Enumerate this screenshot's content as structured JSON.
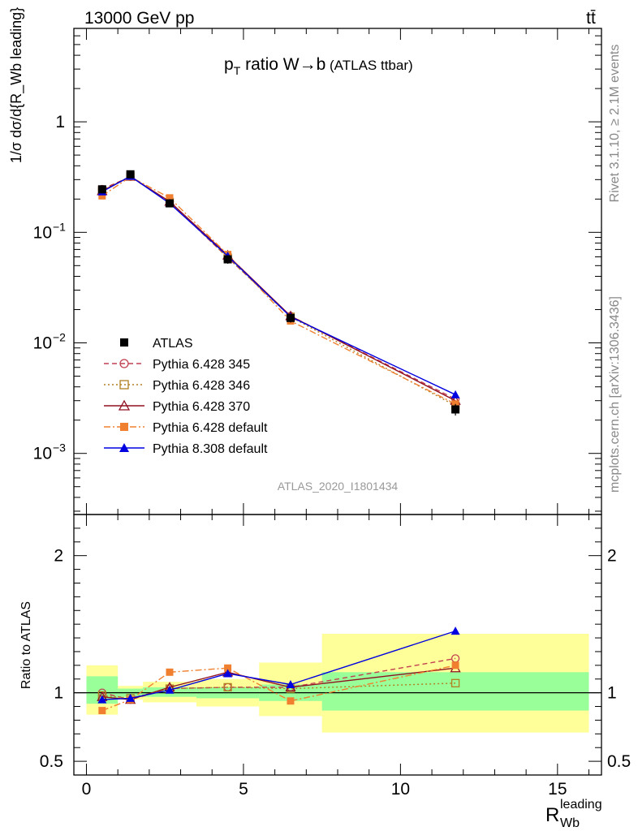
{
  "header": {
    "left": "13000 GeV pp",
    "right": "tt̄"
  },
  "side": {
    "rivet": "Rivet 3.1.10, ≥ 2.1M events",
    "mcplots": "mcplots.cern.ch [arXiv:1306.3436]"
  },
  "analysis_id": "ATLAS_2020_I1801434",
  "plot_title": {
    "main": "p",
    "sub": "T",
    "rest": " ratio W→b",
    "small": " (ATLAS ttbar)"
  },
  "axis_text": {
    "ylabel_top": "1/σ dσ/d{R_Wb leading}",
    "ylabel_bottom": "Ratio to ATLAS",
    "xlabel_main": "R",
    "xlabel_sub": "Wb",
    "xlabel_sup": "leading"
  },
  "chart_data": [
    {
      "type": "line",
      "panel": "main",
      "yscale": "log",
      "xlim": [
        -0.4,
        16.4
      ],
      "ylim": [
        0.00028,
        7
      ],
      "x_ticks": [
        0,
        5,
        10,
        15
      ],
      "y_ticks": [
        {
          "value": 0.001,
          "label": "10",
          "exp": "−3"
        },
        {
          "value": 0.01,
          "label": "10",
          "exp": "−2"
        },
        {
          "value": 0.1,
          "label": "10",
          "exp": "−1"
        },
        {
          "value": 1,
          "label": "1",
          "exp": ""
        }
      ],
      "legend_position": "bottom-left",
      "series": [
        {
          "name": "ATLAS",
          "color": "#000000",
          "marker": "square-filled",
          "line": "none",
          "x": [
            0.5,
            1.4,
            2.65,
            4.5,
            6.5,
            11.75
          ],
          "y": [
            0.245,
            0.335,
            0.183,
            0.057,
            0.0168,
            0.0025
          ],
          "err": [
            0.02,
            0.022,
            0.012,
            0.005,
            0.0015,
            0.0003
          ]
        },
        {
          "name": "Pythia 6.428 345",
          "color": "#c04050",
          "marker": "circle-open",
          "line": "dashed",
          "x": [
            0.5,
            1.4,
            2.65,
            4.5,
            6.5,
            11.75
          ],
          "y": [
            0.246,
            0.318,
            0.188,
            0.059,
            0.0175,
            0.0031
          ]
        },
        {
          "name": "Pythia 6.428 346",
          "color": "#b08020",
          "marker": "square-open",
          "line": "dotted",
          "x": [
            0.5,
            1.4,
            2.65,
            4.5,
            6.5,
            11.75
          ],
          "y": [
            0.24,
            0.32,
            0.188,
            0.059,
            0.0172,
            0.0027
          ]
        },
        {
          "name": "Pythia 6.428 370",
          "color": "#901020",
          "marker": "triangle-open",
          "line": "solid",
          "x": [
            0.5,
            1.4,
            2.65,
            4.5,
            6.5,
            11.75
          ],
          "y": [
            0.237,
            0.32,
            0.19,
            0.062,
            0.0175,
            0.003
          ]
        },
        {
          "name": "Pythia 6.428 default",
          "color": "#f08030",
          "marker": "square-filled",
          "line": "dashdot",
          "x": [
            0.5,
            1.4,
            2.65,
            4.5,
            6.5,
            11.75
          ],
          "y": [
            0.214,
            0.318,
            0.205,
            0.063,
            0.0158,
            0.0028
          ]
        },
        {
          "name": "Pythia 8.308 default",
          "color": "#0000e0",
          "marker": "triangle-filled",
          "line": "solid",
          "x": [
            0.5,
            1.4,
            2.65,
            4.5,
            6.5,
            11.75
          ],
          "y": [
            0.233,
            0.322,
            0.183,
            0.061,
            0.0172,
            0.0034
          ]
        }
      ]
    },
    {
      "type": "line",
      "panel": "ratio",
      "ylabel": "Ratio to ATLAS",
      "xlim": [
        -0.4,
        16.4
      ],
      "ylim": [
        0.4,
        2.3
      ],
      "x_ticks": [
        0,
        5,
        10,
        15
      ],
      "y_ticks": [
        0.5,
        1,
        2
      ],
      "bands": {
        "bins": [
          [
            0,
            1
          ],
          [
            1,
            1.8
          ],
          [
            1.8,
            3.5
          ],
          [
            3.5,
            5.5
          ],
          [
            5.5,
            7.5
          ],
          [
            7.5,
            16
          ]
        ],
        "stat_lo": [
          0.92,
          0.97,
          0.97,
          0.96,
          0.94,
          0.87
        ],
        "stat_hi": [
          1.12,
          1.03,
          1.04,
          1.04,
          1.06,
          1.15
        ],
        "total_lo": [
          0.84,
          0.95,
          0.93,
          0.9,
          0.83,
          0.71
        ],
        "total_hi": [
          1.2,
          1.05,
          1.08,
          1.1,
          1.22,
          1.43
        ],
        "stat_color": "#99ff99",
        "total_color": "#ffff99"
      },
      "series": [
        {
          "name": "Pythia 6.428 345",
          "color": "#c04050",
          "marker": "circle-open",
          "line": "dashed",
          "x": [
            0.5,
            1.4,
            2.65,
            4.5,
            6.5,
            11.75
          ],
          "y": [
            1.0,
            0.95,
            1.03,
            1.04,
            1.04,
            1.25
          ]
        },
        {
          "name": "Pythia 6.428 346",
          "color": "#b08020",
          "marker": "square-open",
          "line": "dotted",
          "x": [
            0.5,
            1.4,
            2.65,
            4.5,
            6.5,
            11.75
          ],
          "y": [
            0.98,
            0.96,
            1.03,
            1.04,
            1.03,
            1.07
          ]
        },
        {
          "name": "Pythia 6.428 370",
          "color": "#901020",
          "marker": "triangle-open",
          "line": "solid",
          "x": [
            0.5,
            1.4,
            2.65,
            4.5,
            6.5,
            11.75
          ],
          "y": [
            0.97,
            0.95,
            1.04,
            1.15,
            1.04,
            1.18
          ]
        },
        {
          "name": "Pythia 6.428 default",
          "color": "#f08030",
          "marker": "square-filled",
          "line": "dashdot",
          "x": [
            0.5,
            1.4,
            2.65,
            4.5,
            6.5,
            11.75
          ],
          "y": [
            0.87,
            0.95,
            1.15,
            1.18,
            0.94,
            1.2
          ]
        },
        {
          "name": "Pythia 8.308 default",
          "color": "#0000e0",
          "marker": "triangle-filled",
          "line": "solid",
          "x": [
            0.5,
            1.4,
            2.65,
            4.5,
            6.5,
            11.75
          ],
          "y": [
            0.95,
            0.96,
            1.02,
            1.14,
            1.06,
            1.45
          ]
        }
      ]
    }
  ]
}
